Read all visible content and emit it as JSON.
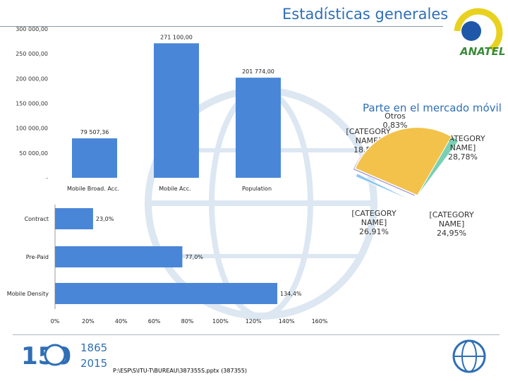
{
  "header": {
    "title": "Estadísticas generales",
    "brand": "ANATEL"
  },
  "colors": {
    "title": "#2f6fb5",
    "bar": "#4a86d8",
    "pie_slices": [
      "#9b8fd0",
      "#8cc7ef",
      "#7ad0b4",
      "#e74c4c",
      "#f2c24a"
    ]
  },
  "chart_data": [
    {
      "type": "bar",
      "orientation": "vertical",
      "categories": [
        "Mobile Broad. Acc.",
        "Mobile Acc.",
        "Population"
      ],
      "values": [
        79507.36,
        271100.0,
        201774.0
      ],
      "value_labels": [
        "79 507,36",
        "271 100,00",
        "201 774,00"
      ],
      "y_ticks": [
        "300 000,00",
        "250 000,00",
        "200 000,00",
        "150 000,00",
        "100 000,00",
        "50 000,00",
        "-"
      ],
      "ylim": [
        0,
        300000
      ],
      "grid": false
    },
    {
      "type": "bar",
      "orientation": "horizontal",
      "categories": [
        "Contract",
        "Pre-Paid",
        "Mobile Density"
      ],
      "values": [
        23.0,
        77.0,
        134.4
      ],
      "value_labels": [
        "23,0%",
        "77,0%",
        "134,4%"
      ],
      "x_ticks": [
        "0%",
        "20%",
        "40%",
        "60%",
        "80%",
        "100%",
        "120%",
        "140%",
        "160%"
      ],
      "xlim": [
        0,
        160
      ],
      "grid": false
    },
    {
      "type": "pie",
      "title": "Parte en el mercado móvil",
      "values": [
        18.53,
        0.83,
        28.78,
        24.95,
        26.91
      ],
      "labels": [
        "[CATEGORY NAME] 18,53%",
        "Otros 0,83%",
        "[CATEGORY NAME] 28,78%",
        "[CATEGORY NAME] 24,95%",
        "[CATEGORY NAME] 26,91%"
      ]
    }
  ],
  "footer": {
    "path": "P:\\ESP\\S\\ITU-T\\BUREAU\\387355S.pptx (387355)",
    "years_top": "1865",
    "years_bottom": "2015",
    "number": "150"
  }
}
